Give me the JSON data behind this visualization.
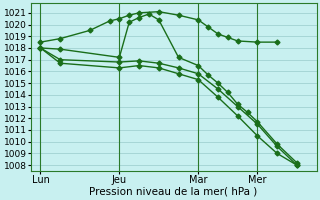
{
  "bg_color": "#c8f0f0",
  "grid_color": "#99cccc",
  "line_color": "#1a6e1a",
  "x_ticks_labels": [
    "Lun",
    "Jeu",
    "Mar",
    "Mer"
  ],
  "x_ticks_pos": [
    0,
    8,
    16,
    22
  ],
  "xlabel": "Pression niveau de la mer( hPa )",
  "ylim": [
    1007.5,
    1021.8
  ],
  "yticks": [
    1008,
    1009,
    1010,
    1011,
    1012,
    1013,
    1014,
    1015,
    1016,
    1017,
    1018,
    1019,
    1020,
    1021
  ],
  "xlim": [
    -1,
    28
  ],
  "vlines_x": [
    0,
    8,
    16,
    22
  ],
  "line1_x": [
    0,
    2,
    5,
    7,
    8,
    9,
    10,
    12,
    14,
    16,
    17,
    18,
    19,
    20,
    22,
    24
  ],
  "line1_y": [
    1018.5,
    1018.8,
    1019.5,
    1020.3,
    1020.5,
    1020.8,
    1021.0,
    1021.1,
    1020.8,
    1020.4,
    1019.8,
    1019.2,
    1018.9,
    1018.6,
    1018.5,
    1018.5
  ],
  "line2_x": [
    0,
    2,
    8,
    9,
    10,
    11,
    12,
    14,
    16,
    17,
    18,
    19,
    20,
    21,
    22,
    24,
    26
  ],
  "line2_y": [
    1018.0,
    1017.9,
    1017.2,
    1020.2,
    1020.6,
    1020.9,
    1020.4,
    1017.2,
    1016.5,
    1015.7,
    1015.0,
    1014.2,
    1013.2,
    1012.5,
    1011.7,
    1009.8,
    1008.2
  ],
  "line3_x": [
    0,
    2,
    8,
    10,
    12,
    14,
    16,
    18,
    20,
    22,
    24,
    26
  ],
  "line3_y": [
    1018.0,
    1017.0,
    1016.8,
    1016.9,
    1016.7,
    1016.3,
    1015.8,
    1014.5,
    1013.0,
    1011.5,
    1009.6,
    1008.0
  ],
  "line4_x": [
    0,
    2,
    8,
    10,
    12,
    14,
    16,
    18,
    20,
    22,
    24,
    26
  ],
  "line4_y": [
    1018.0,
    1016.7,
    1016.3,
    1016.5,
    1016.3,
    1015.8,
    1015.3,
    1013.8,
    1012.2,
    1010.5,
    1009.0,
    1008.0
  ],
  "marker": "D",
  "markersize": 2.5,
  "linewidth": 1.0
}
